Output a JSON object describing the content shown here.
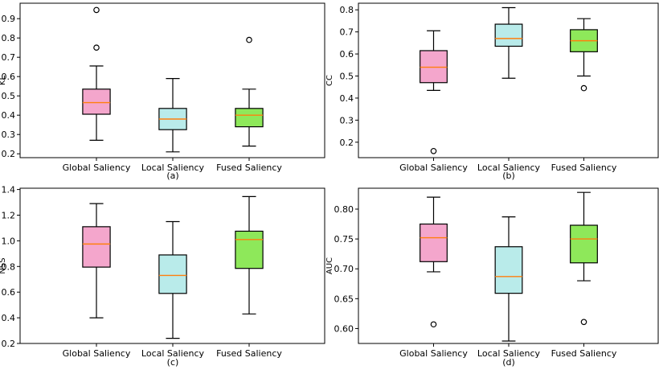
{
  "box_style": {
    "box_colors": [
      "#f4a6cc",
      "#b9ebea",
      "#8ee85a"
    ],
    "median_color": "#ff7f0e",
    "line_color": "#000000"
  },
  "chart_data": [
    {
      "type": "boxplot",
      "subplot_label": "(a)",
      "ylabel": "KL",
      "ylim": [
        0.18,
        0.98
      ],
      "yticks": [
        "0.2",
        "0.3",
        "0.4",
        "0.5",
        "0.6",
        "0.7",
        "0.8",
        "0.9"
      ],
      "categories": [
        "Global Saliency",
        "Local Saliency",
        "Fused Saliency"
      ],
      "boxes": [
        {
          "whislo": 0.27,
          "q1": 0.405,
          "med": 0.465,
          "q3": 0.535,
          "whishi": 0.655,
          "fliers": [
            0.75,
            0.945
          ]
        },
        {
          "whislo": 0.21,
          "q1": 0.325,
          "med": 0.38,
          "q3": 0.435,
          "whishi": 0.59,
          "fliers": []
        },
        {
          "whislo": 0.24,
          "q1": 0.34,
          "med": 0.4,
          "q3": 0.435,
          "whishi": 0.535,
          "fliers": [
            0.79
          ]
        }
      ]
    },
    {
      "type": "boxplot",
      "subplot_label": "(b)",
      "ylabel": "CC",
      "ylim": [
        0.13,
        0.83
      ],
      "yticks": [
        "0.2",
        "0.3",
        "0.4",
        "0.5",
        "0.6",
        "0.7",
        "0.8"
      ],
      "categories": [
        "Global Saliency",
        "Local Saliency",
        "Fused Saliency"
      ],
      "boxes": [
        {
          "whislo": 0.435,
          "q1": 0.47,
          "med": 0.54,
          "q3": 0.615,
          "whishi": 0.705,
          "fliers": [
            0.16
          ]
        },
        {
          "whislo": 0.49,
          "q1": 0.635,
          "med": 0.67,
          "q3": 0.735,
          "whishi": 0.81,
          "fliers": []
        },
        {
          "whislo": 0.5,
          "q1": 0.61,
          "med": 0.66,
          "q3": 0.71,
          "whishi": 0.76,
          "fliers": [
            0.445
          ]
        }
      ]
    },
    {
      "type": "boxplot",
      "subplot_label": "(c)",
      "ylabel": "NSS",
      "ylim": [
        0.2,
        1.41
      ],
      "yticks": [
        "0.2",
        "0.4",
        "0.6",
        "0.8",
        "1.0",
        "1.2",
        "1.4"
      ],
      "categories": [
        "Global Saliency",
        "Local Saliency",
        "Fused Saliency"
      ],
      "boxes": [
        {
          "whislo": 0.4,
          "q1": 0.795,
          "med": 0.975,
          "q3": 1.11,
          "whishi": 1.29,
          "fliers": []
        },
        {
          "whislo": 0.24,
          "q1": 0.59,
          "med": 0.73,
          "q3": 0.89,
          "whishi": 1.15,
          "fliers": []
        },
        {
          "whislo": 0.43,
          "q1": 0.785,
          "med": 1.01,
          "q3": 1.075,
          "whishi": 1.345,
          "fliers": []
        }
      ]
    },
    {
      "type": "boxplot",
      "subplot_label": "(d)",
      "ylabel": "AUC",
      "ylim": [
        0.575,
        0.835
      ],
      "yticks": [
        "0.60",
        "0.65",
        "0.70",
        "0.75",
        "0.80"
      ],
      "categories": [
        "Global Saliency",
        "Local Saliency",
        "Fused Saliency"
      ],
      "boxes": [
        {
          "whislo": 0.695,
          "q1": 0.712,
          "med": 0.752,
          "q3": 0.775,
          "whishi": 0.82,
          "fliers": [
            0.607
          ]
        },
        {
          "whislo": 0.579,
          "q1": 0.659,
          "med": 0.687,
          "q3": 0.737,
          "whishi": 0.787,
          "fliers": []
        },
        {
          "whislo": 0.68,
          "q1": 0.71,
          "med": 0.75,
          "q3": 0.773,
          "whishi": 0.828,
          "fliers": [
            0.611
          ]
        }
      ]
    }
  ]
}
